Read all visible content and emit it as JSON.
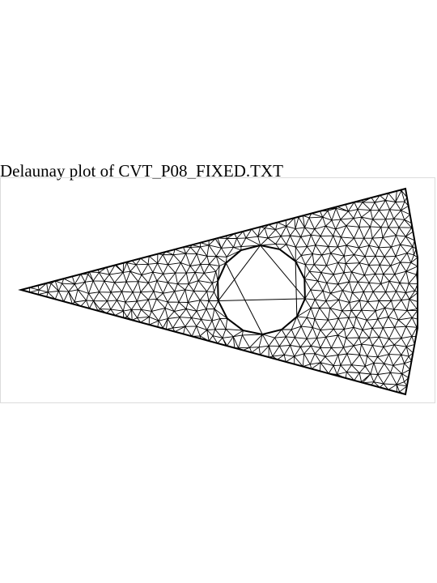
{
  "title": "Delaunay plot of CVT_P08_FIXED.TXT",
  "diagram": {
    "type": "delaunay-triangulation",
    "region": "triangular wedge with circular hole",
    "line_color": "#000000",
    "background": "#ffffff",
    "frame_color": "#dcdcdc"
  }
}
